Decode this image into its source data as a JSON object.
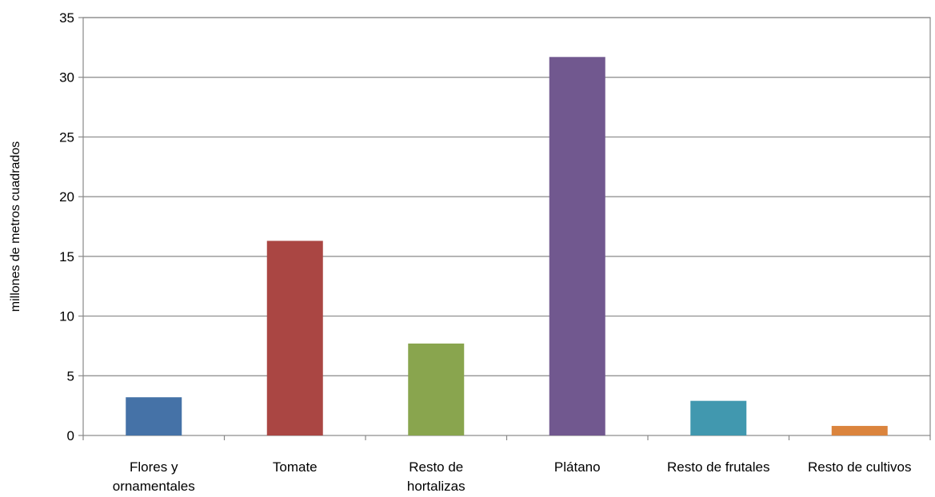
{
  "chart_data": {
    "type": "bar",
    "title": "",
    "xlabel": "",
    "ylabel": "millones de metros cuadrados",
    "categories": [
      [
        "Flores y",
        "ornamentales"
      ],
      [
        "Tomate"
      ],
      [
        "Resto de",
        "hortalizas"
      ],
      [
        "Plátano"
      ],
      [
        "Resto de frutales"
      ],
      [
        "Resto de cultivos"
      ]
    ],
    "values": [
      3.2,
      16.3,
      7.7,
      31.7,
      2.9,
      0.8
    ],
    "colors": [
      "#4572A7",
      "#AA4643",
      "#89A54E",
      "#71588F",
      "#4198AF",
      "#DB843D"
    ],
    "ylim": [
      0,
      35
    ],
    "yticks": [
      "0",
      "5",
      "10",
      "15",
      "20",
      "25",
      "30",
      "35"
    ],
    "grid": true,
    "legend": "none"
  }
}
